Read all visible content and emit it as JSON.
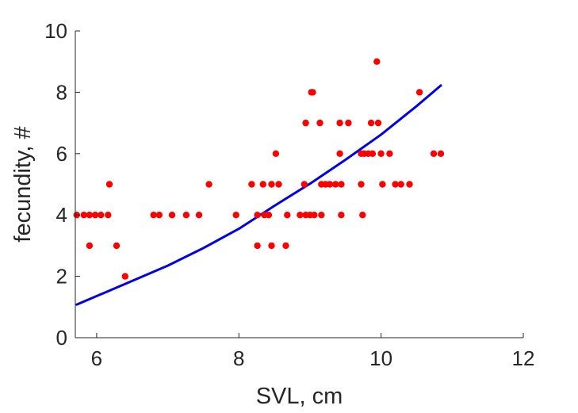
{
  "chart_data": {
    "type": "scatter",
    "title": "",
    "xlabel": "SVL, cm",
    "ylabel": "fecundity, #",
    "xlim": [
      5.7,
      12
    ],
    "ylim": [
      0,
      10
    ],
    "xticks": [
      6,
      8,
      10,
      12
    ],
    "yticks": [
      0,
      2,
      4,
      6,
      8,
      10
    ],
    "grid": false,
    "colors": {
      "points": "#ff0000",
      "fit_line": "#0000ee",
      "axes": "#262626"
    },
    "series": [
      {
        "kind": "points",
        "x": [
          5.72,
          5.82,
          5.9,
          5.98,
          6.06,
          6.16,
          5.9,
          6.18,
          6.28,
          6.4,
          6.8,
          6.88,
          7.06,
          7.26,
          7.44,
          7.58,
          7.96,
          8.18,
          8.26,
          8.26,
          8.34,
          8.36,
          8.42,
          8.46,
          8.46,
          8.52,
          8.56,
          8.66,
          8.68,
          8.86,
          8.92,
          8.94,
          8.94,
          9.0,
          9.02,
          9.04,
          9.06,
          9.14,
          9.16,
          9.16,
          9.22,
          9.28,
          9.36,
          9.42,
          9.42,
          9.44,
          9.44,
          9.54,
          9.72,
          9.72,
          9.74,
          9.76,
          9.82,
          9.86,
          9.88,
          9.94,
          9.96,
          10.0,
          10.02,
          10.12,
          10.2,
          10.28,
          10.4,
          10.54,
          10.74,
          10.84
        ],
        "y": [
          4,
          4,
          4,
          4,
          4,
          4,
          3,
          5,
          3,
          2,
          4,
          4,
          4,
          4,
          4,
          5,
          4,
          5,
          4,
          3,
          5,
          4,
          4,
          5,
          3,
          6,
          5,
          3,
          4,
          4,
          5,
          7,
          4,
          4,
          8,
          8,
          4,
          7,
          5,
          4,
          5,
          5,
          5,
          6,
          7,
          4,
          5,
          7,
          5,
          6,
          4,
          6,
          6,
          7,
          6,
          9,
          7,
          6,
          5,
          6,
          5,
          5,
          5,
          8,
          6,
          6
        ]
      },
      {
        "kind": "fit_line",
        "x": [
          5.72,
          6.5,
          7.0,
          7.5,
          8.0,
          8.5,
          9.0,
          9.5,
          10.0,
          10.5,
          10.84
        ],
        "y": [
          1.08,
          1.85,
          2.35,
          2.92,
          3.55,
          4.3,
          5.02,
          5.8,
          6.62,
          7.55,
          8.22
        ]
      }
    ]
  }
}
